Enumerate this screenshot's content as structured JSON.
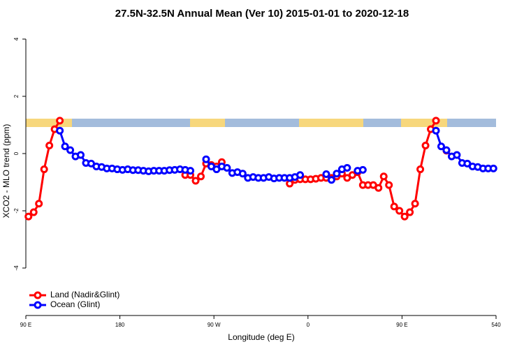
{
  "chart_data": {
    "type": "line",
    "title": "27.5N-32.5N Annual Mean (Ver 10)   2015-01-01 to 2020-12-18",
    "x_label": "Longitude (deg E)",
    "y_label": "XCO2 - MLO trend (ppm)",
    "xlim": [
      90,
      540
    ],
    "xticks": [
      {
        "value": 90,
        "label": "90 E"
      },
      180,
      {
        "value": 270,
        "label": "90 W"
      },
      {
        "value": 360,
        "label": "0"
      },
      {
        "value": 450,
        "label": "90 E"
      },
      540
    ],
    "ylim": [
      -5.6,
      4.4
    ],
    "yticks": [
      -4,
      -2,
      0,
      2,
      4
    ],
    "legend": "bottom-left",
    "x": [
      92.5,
      97.5,
      102.5,
      107.5,
      112.5,
      117.5,
      122.5,
      127.5,
      132.5,
      137.5,
      142.5,
      147.5,
      152.5,
      157.5,
      162.5,
      167.5,
      172.5,
      177.5,
      182.5,
      187.5,
      192.5,
      197.5,
      202.5,
      207.5,
      212.5,
      217.5,
      222.5,
      227.5,
      232.5,
      237.5,
      242.5,
      247.5,
      252.5,
      257.5,
      262.5,
      267.5,
      272.5,
      277.5,
      282.5,
      287.5,
      292.5,
      297.5,
      302.5,
      307.5,
      312.5,
      317.5,
      322.5,
      327.5,
      332.5,
      337.5,
      342.5,
      347.5,
      352.5,
      357.5,
      362.5,
      367.5,
      372.5,
      377.5,
      382.5,
      387.5,
      392.5,
      397.5,
      402.5,
      407.5,
      412.5,
      417.5,
      422.5,
      427.5,
      432.5,
      437.5,
      442.5,
      447.5,
      452.5,
      457.5,
      462.5,
      467.5,
      472.5,
      477.5,
      482.5,
      487.5,
      492.5,
      497.5,
      502.5,
      507.5,
      512.5,
      517.5,
      522.5,
      527.5,
      532.5,
      537.5
    ],
    "series": [
      {
        "name": "Land (Nadir&Glint)",
        "color": "#ff0000",
        "values": [
          -2.2,
          -2.05,
          -1.75,
          -0.55,
          0.28,
          0.85,
          1.15,
          null,
          null,
          null,
          null,
          null,
          null,
          null,
          null,
          null,
          null,
          null,
          null,
          null,
          null,
          null,
          null,
          null,
          null,
          null,
          null,
          null,
          null,
          null,
          -0.75,
          -0.75,
          -0.95,
          -0.8,
          -0.35,
          -0.4,
          -0.45,
          -0.3,
          null,
          null,
          null,
          null,
          null,
          null,
          null,
          null,
          null,
          null,
          null,
          null,
          -1.05,
          -0.92,
          -0.9,
          -0.9,
          -0.9,
          -0.88,
          -0.85,
          -0.85,
          -0.85,
          -0.8,
          -0.7,
          -0.85,
          -0.75,
          -0.65,
          -1.1,
          -1.1,
          -1.1,
          -1.2,
          -0.8,
          -1.1,
          -1.85,
          -2.0,
          -2.2,
          -2.05,
          -1.75,
          -0.55,
          0.28,
          0.85,
          1.15,
          null,
          0.1,
          null,
          null,
          null,
          null,
          null,
          null,
          null,
          null,
          null
        ]
      },
      {
        "name": "Ocean (Glint)",
        "color": "#0000ff",
        "values": [
          null,
          null,
          null,
          null,
          null,
          null,
          0.8,
          0.25,
          0.12,
          -0.1,
          -0.05,
          -0.33,
          -0.35,
          -0.45,
          -0.47,
          -0.52,
          -0.52,
          -0.55,
          -0.57,
          -0.55,
          -0.58,
          -0.58,
          -0.6,
          -0.62,
          -0.6,
          -0.6,
          -0.6,
          -0.58,
          -0.57,
          -0.55,
          -0.57,
          -0.6,
          null,
          null,
          -0.2,
          -0.45,
          -0.55,
          -0.45,
          -0.5,
          -0.68,
          -0.65,
          -0.7,
          -0.85,
          -0.82,
          -0.85,
          -0.85,
          -0.82,
          -0.87,
          -0.85,
          -0.85,
          -0.85,
          -0.82,
          -0.75,
          null,
          null,
          null,
          null,
          -0.72,
          -0.92,
          -0.7,
          -0.55,
          -0.5,
          null,
          -0.6,
          -0.57,
          null,
          null,
          null,
          null,
          null,
          null,
          null,
          null,
          null,
          null,
          null,
          null,
          null,
          0.8,
          0.25,
          0.12,
          -0.1,
          -0.05,
          -0.33,
          -0.35,
          -0.45,
          -0.47,
          -0.52,
          -0.52,
          -0.52
        ]
      }
    ]
  }
}
